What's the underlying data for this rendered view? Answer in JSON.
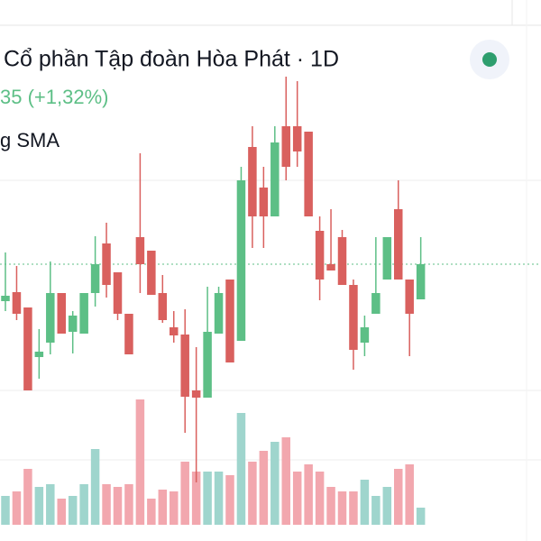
{
  "chart_data": {
    "type": "candlestick",
    "title": "Cổ phần Tập đoàn Hòa Phát · 1D",
    "change": "35 (+1,32%)",
    "indicator": "g SMA",
    "open": [
      26.6,
      27.6,
      25.9,
      20.4,
      22.0,
      27.5,
      23.2,
      23.0,
      27.5,
      33.0,
      29.8,
      25.2,
      33.7,
      32.2,
      27.5,
      23.7,
      22.9,
      16.7,
      15.9,
      23.0,
      29.0,
      22.2,
      43.7,
      39.2,
      36.0,
      46.0,
      46.0,
      45.4,
      34.4,
      30.7,
      33.7,
      28.4,
      22.0,
      25.2,
      29.0,
      36.8,
      29.0,
      26.8
    ],
    "high": [
      32.0,
      30.5,
      25.9,
      23.5,
      31.0,
      27.5,
      25.5,
      27.5,
      33.8,
      35.3,
      29.8,
      25.2,
      43.0,
      32.2,
      29.5,
      25.5,
      25.7,
      21.5,
      28.2,
      28.2,
      29.0,
      41.5,
      46.0,
      41.5,
      46.0,
      51.5,
      51.0,
      45.4,
      36.0,
      36.8,
      34.5,
      29.0,
      25.0,
      33.7,
      33.7,
      40.0,
      29.0,
      33.7
    ],
    "low": [
      25.5,
      24.5,
      16.7,
      18.0,
      20.7,
      23.0,
      20.8,
      23.0,
      26.0,
      27.0,
      24.5,
      20.7,
      27.5,
      27.3,
      24.2,
      22.0,
      12.0,
      6.5,
      15.9,
      23.0,
      19.8,
      22.2,
      32.5,
      32.5,
      36.0,
      40.0,
      41.5,
      36.0,
      26.7,
      30.0,
      28.4,
      19.0,
      20.5,
      25.2,
      29.0,
      29.0,
      20.5,
      26.8
    ],
    "close": [
      27.2,
      25.2,
      16.7,
      21.0,
      27.5,
      23.0,
      25.0,
      27.5,
      30.7,
      28.4,
      25.2,
      20.7,
      30.7,
      27.3,
      24.5,
      22.8,
      16.0,
      15.9,
      23.2,
      27.5,
      19.8,
      40.0,
      36.0,
      36.0,
      44.2,
      41.5,
      43.2,
      36.0,
      29.0,
      30.0,
      28.4,
      21.2,
      23.7,
      27.5,
      33.7,
      29.0,
      25.2,
      30.7
    ],
    "volume": [
      32,
      37,
      62,
      42,
      45,
      29,
      32,
      45,
      84,
      45,
      42,
      45,
      139,
      29,
      39,
      37,
      70,
      59,
      59,
      59,
      55,
      124,
      70,
      82,
      92,
      97,
      59,
      67,
      59,
      42,
      37,
      37,
      50,
      32,
      42,
      62,
      67,
      19
    ],
    "ylim": [
      0,
      60
    ],
    "volume_ylim": [
      0,
      300
    ],
    "up_color": "#5dbf86",
    "down_color": "#d9605e",
    "volume_up_color": "#9fd5cd",
    "volume_down_color": "#f2a7ae"
  }
}
